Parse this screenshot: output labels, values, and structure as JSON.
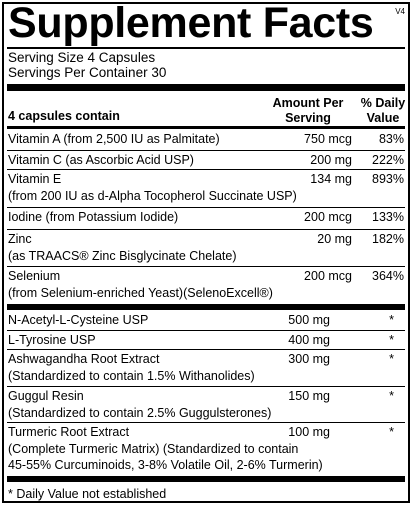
{
  "title": "Supplement Facts",
  "version": "V4",
  "serving_size": "Serving Size 4 Capsules",
  "servings_per_container": "Servings Per Container 30",
  "header": {
    "contain": "4 capsules contain",
    "amount_line1": "Amount Per",
    "amount_line2": "Serving",
    "dv_line1": "% Daily",
    "dv_line2": "Value"
  },
  "nutrients": [
    {
      "lines": [
        "Vitamin A (from 2,500 IU as Palmitate)"
      ],
      "amount": "750 mcg",
      "dv": "83%"
    },
    {
      "lines": [
        "Vitamin C (as Ascorbic Acid USP)"
      ],
      "amount": "200 mg",
      "dv": "222%"
    },
    {
      "lines": [
        "Vitamin E",
        "(from 200 IU as d-Alpha Tocopherol Succinate USP)"
      ],
      "amount": "134 mg",
      "dv": "893%"
    },
    {
      "lines": [
        "Iodine (from Potassium Iodide)"
      ],
      "amount": "200 mcg",
      "dv": "133%"
    },
    {
      "lines": [
        "Zinc",
        "(as TRAACS® Zinc Bisglycinate Chelate)"
      ],
      "amount": "20 mg",
      "dv": "182%"
    },
    {
      "lines": [
        "Selenium",
        "(from Selenium-enriched Yeast)(SelenoExcell®)"
      ],
      "amount": "200 mcg",
      "dv": "364%"
    }
  ],
  "others": [
    {
      "lines": [
        "N-Acetyl-L-Cysteine USP"
      ],
      "amount": "500 mg",
      "dv": "*"
    },
    {
      "lines": [
        "L-Tyrosine USP"
      ],
      "amount": "400 mg",
      "dv": "*"
    },
    {
      "lines": [
        "Ashwagandha Root Extract",
        "(Standardized to contain 1.5% Withanolides)"
      ],
      "amount": "300 mg",
      "dv": "*"
    },
    {
      "lines": [
        "Guggul Resin",
        "(Standardized to contain 2.5% Guggulsterones)"
      ],
      "amount": "150 mg",
      "dv": "*"
    },
    {
      "lines": [
        "Turmeric Root Extract",
        "(Complete Turmeric Matrix) (Standardized to contain",
        "45-55% Curcuminoids, 3-8% Volatile Oil, 2-6% Turmerin)"
      ],
      "amount": "100 mg",
      "dv": "*"
    }
  ],
  "footnote": "* Daily Value not established"
}
